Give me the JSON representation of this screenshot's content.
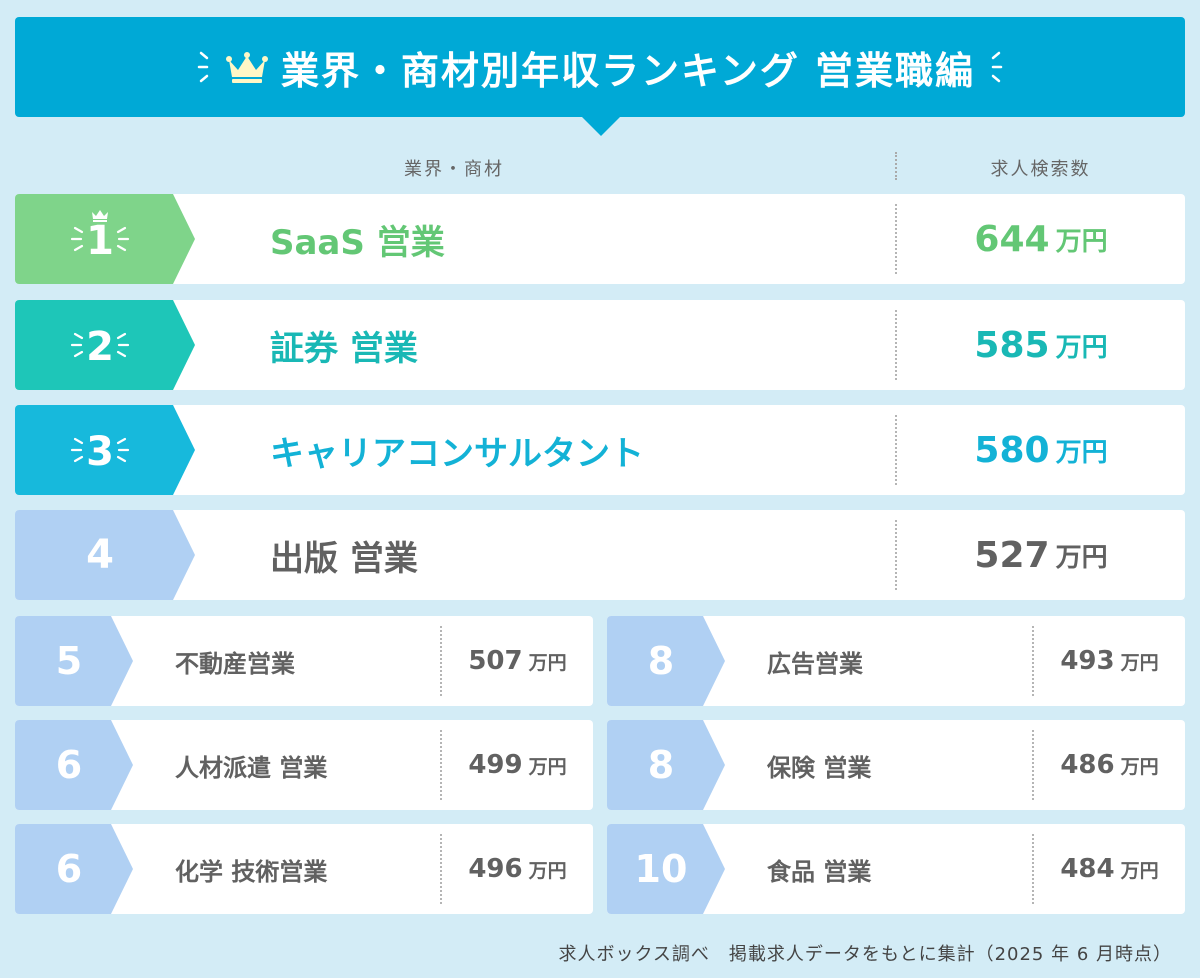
{
  "header": {
    "title": "業界・商材別年収ランキング 営業職編"
  },
  "columns": {
    "left": "業界・商材",
    "right": "求人検索数"
  },
  "colors": {
    "rank1": "#7fd48a",
    "rank2": "#1ec6b8",
    "rank3": "#17b9dc",
    "rest": "#b0d0f3",
    "text1": "#63c775",
    "text2": "#19b8b5",
    "text3": "#13b2d6",
    "textRest": "#616161"
  },
  "chart_data": {
    "type": "table",
    "unit": "万円",
    "rows": [
      {
        "rank": "1",
        "name": "SaaS 営業",
        "value": 644
      },
      {
        "rank": "2",
        "name": "証券 営業",
        "value": 585
      },
      {
        "rank": "3",
        "name": "キャリアコンサルタント",
        "value": 580
      },
      {
        "rank": "4",
        "name": "出版 営業",
        "value": 527
      },
      {
        "rank": "5",
        "name": "不動産営業",
        "value": 507
      },
      {
        "rank": "6",
        "name": "人材派遣 営業",
        "value": 499
      },
      {
        "rank": "6",
        "name": "化学 技術営業",
        "value": 496
      },
      {
        "rank": "8",
        "name": "広告営業",
        "value": 493
      },
      {
        "rank": "8",
        "name": "保険 営業",
        "value": 486
      },
      {
        "rank": "10",
        "name": "食品 営業",
        "value": 484
      }
    ]
  },
  "footer": {
    "note": "求人ボックス調べ　掲載求人データをもとに集計（2025 年 6 月時点）"
  }
}
